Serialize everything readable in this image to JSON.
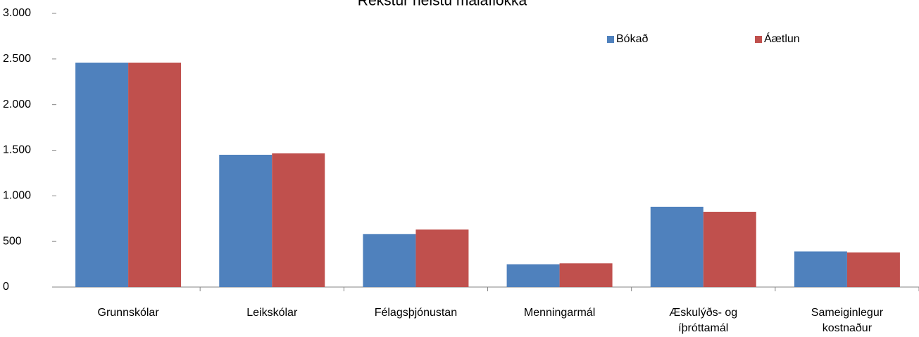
{
  "chart_data": {
    "type": "bar",
    "title": "Rekstur helstu málaflokka",
    "categories": [
      "Grunnskólar",
      "Leikskólar",
      "Félagsþjónustan",
      "Menningarmál",
      "Æskulýðs- og íþróttamál",
      "Sameiginlegur kostnaður"
    ],
    "series": [
      {
        "name": "Bókað",
        "color": "#4f81bd",
        "values": [
          2460,
          1450,
          580,
          250,
          880,
          390
        ]
      },
      {
        "name": "Áætlun",
        "color": "#c0504d",
        "values": [
          2460,
          1465,
          630,
          260,
          825,
          380
        ]
      }
    ],
    "ylim": [
      0,
      3000
    ],
    "yticks": [
      0,
      500,
      {
        "value": 1000,
        "label": "1.000"
      },
      {
        "value": 1500,
        "label": "1.500"
      },
      {
        "value": 2000,
        "label": "2.000"
      },
      {
        "value": 2500,
        "label": "2.500"
      },
      {
        "value": 3000,
        "label": "3.000"
      }
    ],
    "grid": false,
    "legend": "top-right"
  }
}
